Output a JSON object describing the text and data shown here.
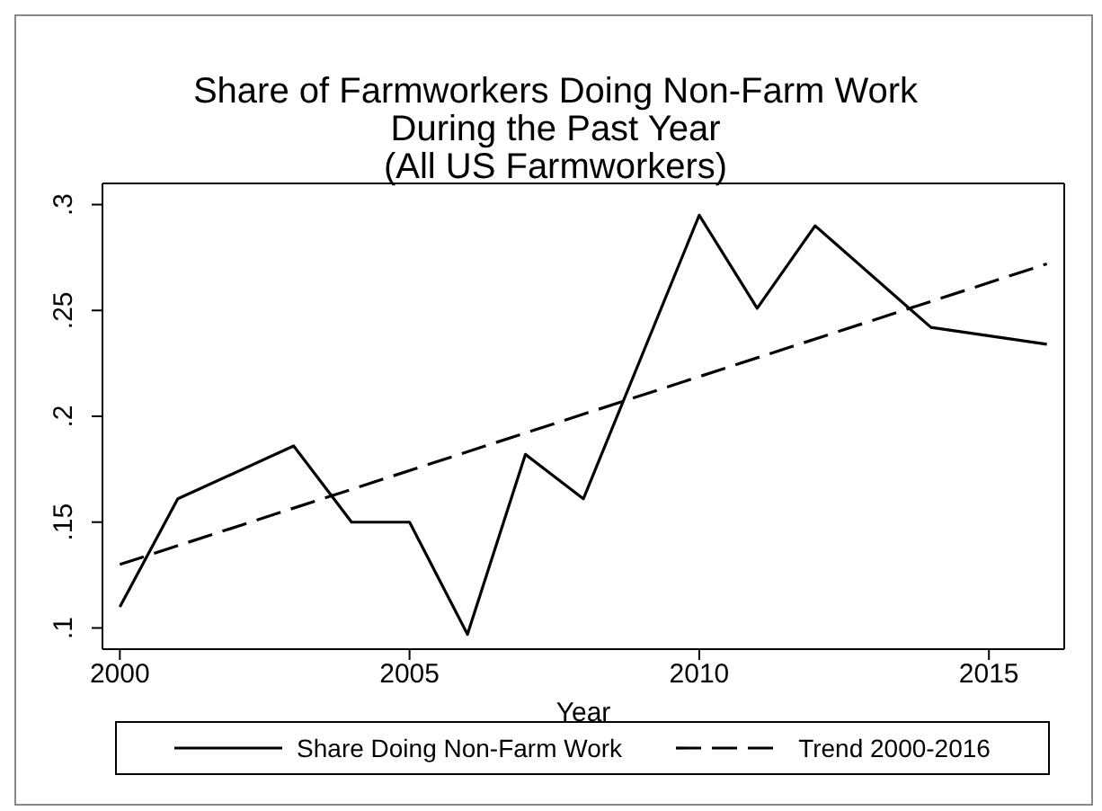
{
  "chart_data": {
    "type": "line",
    "title": "Share of Farmworkers Doing Non-Farm Work\nDuring the Past Year\n(All US Farmworkers)",
    "xlabel": "Year",
    "series": [
      {
        "name": "Share Doing Non-Farm Work",
        "color": "#000000",
        "line_style": "solid",
        "x": [
          2000,
          2001,
          2003,
          2004,
          2005,
          2006,
          2007,
          2008,
          2010,
          2011,
          2012,
          2014,
          2016
        ],
        "values": [
          0.11,
          0.161,
          0.186,
          0.15,
          0.15,
          0.097,
          0.182,
          0.161,
          0.295,
          0.251,
          0.29,
          0.242,
          0.234
        ]
      },
      {
        "name": "Trend 2000-2016",
        "color": "#000000",
        "line_style": "dashed",
        "x": [
          2000,
          2016
        ],
        "values": [
          0.13,
          0.272
        ]
      }
    ],
    "xlim": [
      1999.7,
      2016.3
    ],
    "xticks": [
      2000,
      2005,
      2010,
      2015
    ],
    "ylim": [
      0.09,
      0.31
    ],
    "yticks": [
      {
        "value": 0.1,
        "label": ".1"
      },
      {
        "value": 0.15,
        "label": ".15"
      },
      {
        "value": 0.2,
        "label": ".2"
      },
      {
        "value": 0.25,
        "label": ".25"
      },
      {
        "value": 0.3,
        "label": ".3"
      }
    ],
    "grid": false,
    "legend": "bottom",
    "marker": "none"
  }
}
